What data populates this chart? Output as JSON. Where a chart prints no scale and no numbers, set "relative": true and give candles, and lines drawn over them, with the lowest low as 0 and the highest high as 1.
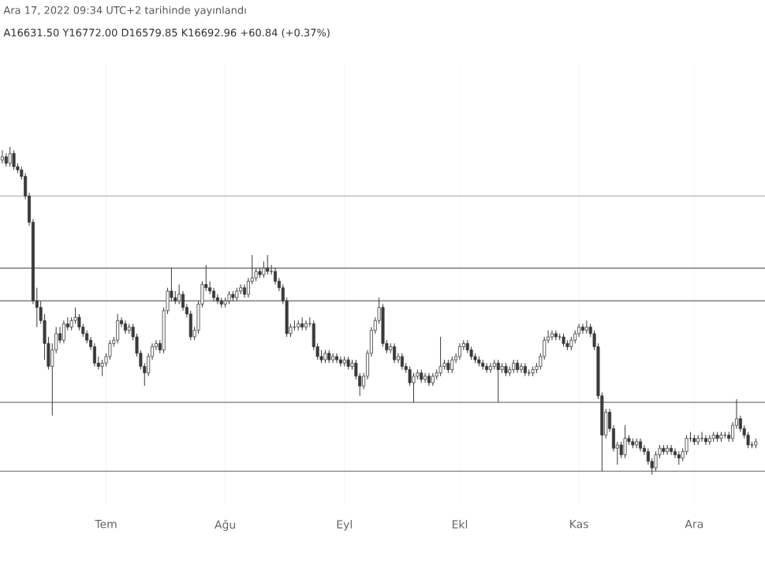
{
  "chart_data": {
    "type": "candlestick",
    "title": "Ara 17, 2022 09:34 UTC+2 tarihinde yayınlandı",
    "subtitle": "A16631.50 Y16772.00 D16579.85 K16692.96 +60.84 (+0.37%)",
    "relative": true,
    "color": "#3a3a3a",
    "grid": "x",
    "categories": [
      null,
      null,
      null,
      null,
      null,
      null,
      null,
      null,
      null,
      null,
      null,
      null,
      null,
      null,
      null,
      null,
      null,
      null,
      null,
      null,
      null,
      null,
      null,
      null,
      null,
      null,
      null,
      "Tem",
      null,
      null,
      null,
      null,
      null,
      null,
      null,
      null,
      null,
      null,
      null,
      null,
      null,
      null,
      null,
      null,
      null,
      null,
      null,
      null,
      null,
      null,
      null,
      null,
      null,
      null,
      null,
      null,
      null,
      null,
      "Ağu",
      null,
      null,
      null,
      null,
      null,
      null,
      null,
      null,
      null,
      null,
      null,
      null,
      null,
      null,
      null,
      null,
      null,
      null,
      null,
      null,
      null,
      null,
      null,
      null,
      null,
      null,
      null,
      null,
      null,
      null,
      "Eyl",
      null,
      null,
      null,
      null,
      null,
      null,
      null,
      null,
      null,
      null,
      null,
      null,
      null,
      null,
      null,
      null,
      null,
      null,
      null,
      null,
      null,
      null,
      null,
      null,
      null,
      null,
      null,
      null,
      null,
      "Ekl",
      null,
      null,
      null,
      null,
      null,
      null,
      null,
      null,
      null,
      null,
      null,
      null,
      null,
      null,
      null,
      null,
      null,
      null,
      null,
      null,
      null,
      null,
      null,
      null,
      null,
      null,
      null,
      null,
      null,
      null,
      "Kas",
      null,
      null,
      null,
      null,
      null,
      null,
      null,
      null,
      null,
      null,
      null,
      null,
      null,
      null,
      null,
      null,
      null,
      null,
      null,
      null,
      null,
      null,
      null,
      null,
      null,
      null,
      null,
      null,
      null,
      "Ara",
      null,
      null,
      null,
      null,
      null,
      null,
      null,
      null,
      null,
      null,
      null,
      null,
      null,
      null,
      null,
      null
    ],
    "ref_lines": [
      {
        "axis": "y",
        "value": 0.85,
        "color": "#bdbdbd"
      },
      {
        "axis": "y",
        "value": 0.63,
        "color": "#8c8c8c"
      },
      {
        "axis": "y",
        "value": 0.53,
        "color": "#8c8c8c"
      },
      {
        "axis": "y",
        "value": 0.22,
        "color": "#8c8c8c"
      },
      {
        "axis": "y",
        "value": 0.01,
        "color": "#8c8c8c"
      }
    ],
    "ohlc": [
      [
        0.96,
        0.99,
        0.95,
        0.97
      ],
      [
        0.97,
        0.98,
        0.94,
        0.95
      ],
      [
        0.95,
        1.0,
        0.94,
        0.98
      ],
      [
        0.98,
        0.99,
        0.93,
        0.94
      ],
      [
        0.94,
        0.95,
        0.92,
        0.93
      ],
      [
        0.93,
        0.94,
        0.9,
        0.91
      ],
      [
        0.91,
        0.92,
        0.84,
        0.85
      ],
      [
        0.85,
        0.86,
        0.76,
        0.77
      ],
      [
        0.77,
        0.78,
        0.52,
        0.53
      ],
      [
        0.53,
        0.57,
        0.45,
        0.51
      ],
      [
        0.51,
        0.53,
        0.46,
        0.47
      ],
      [
        0.47,
        0.49,
        0.35,
        0.4
      ],
      [
        0.4,
        0.42,
        0.32,
        0.33
      ],
      [
        0.33,
        0.4,
        0.18,
        0.38
      ],
      [
        0.38,
        0.45,
        0.37,
        0.43
      ],
      [
        0.43,
        0.45,
        0.4,
        0.41
      ],
      [
        0.41,
        0.47,
        0.4,
        0.46
      ],
      [
        0.46,
        0.48,
        0.44,
        0.45
      ],
      [
        0.45,
        0.48,
        0.44,
        0.47
      ],
      [
        0.47,
        0.51,
        0.46,
        0.48
      ],
      [
        0.48,
        0.49,
        0.44,
        0.45
      ],
      [
        0.45,
        0.46,
        0.42,
        0.43
      ],
      [
        0.43,
        0.44,
        0.4,
        0.41
      ],
      [
        0.41,
        0.42,
        0.38,
        0.39
      ],
      [
        0.39,
        0.4,
        0.33,
        0.34
      ],
      [
        0.34,
        0.36,
        0.32,
        0.33
      ],
      [
        0.33,
        0.35,
        0.3,
        0.34
      ],
      [
        0.34,
        0.37,
        0.33,
        0.36
      ],
      [
        0.36,
        0.41,
        0.35,
        0.4
      ],
      [
        0.4,
        0.42,
        0.39,
        0.41
      ],
      [
        0.41,
        0.49,
        0.4,
        0.47
      ],
      [
        0.47,
        0.48,
        0.45,
        0.46
      ],
      [
        0.46,
        0.47,
        0.43,
        0.44
      ],
      [
        0.44,
        0.46,
        0.43,
        0.45
      ],
      [
        0.45,
        0.46,
        0.41,
        0.42
      ],
      [
        0.42,
        0.43,
        0.36,
        0.37
      ],
      [
        0.37,
        0.38,
        0.32,
        0.33
      ],
      [
        0.33,
        0.34,
        0.27,
        0.31
      ],
      [
        0.31,
        0.37,
        0.3,
        0.36
      ],
      [
        0.36,
        0.4,
        0.35,
        0.39
      ],
      [
        0.39,
        0.41,
        0.38,
        0.4
      ],
      [
        0.4,
        0.41,
        0.37,
        0.38
      ],
      [
        0.38,
        0.51,
        0.37,
        0.5
      ],
      [
        0.5,
        0.57,
        0.49,
        0.56
      ],
      [
        0.56,
        0.63,
        0.53,
        0.54
      ],
      [
        0.54,
        0.56,
        0.52,
        0.53
      ],
      [
        0.53,
        0.58,
        0.52,
        0.55
      ],
      [
        0.55,
        0.56,
        0.5,
        0.51
      ],
      [
        0.51,
        0.52,
        0.48,
        0.49
      ],
      [
        0.49,
        0.5,
        0.41,
        0.42
      ],
      [
        0.42,
        0.45,
        0.41,
        0.44
      ],
      [
        0.44,
        0.53,
        0.43,
        0.52
      ],
      [
        0.52,
        0.59,
        0.51,
        0.58
      ],
      [
        0.58,
        0.64,
        0.56,
        0.57
      ],
      [
        0.57,
        0.59,
        0.55,
        0.56
      ],
      [
        0.56,
        0.57,
        0.53,
        0.54
      ],
      [
        0.54,
        0.55,
        0.52,
        0.53
      ],
      [
        0.53,
        0.54,
        0.51,
        0.52
      ],
      [
        0.52,
        0.54,
        0.51,
        0.53
      ],
      [
        0.53,
        0.56,
        0.52,
        0.55
      ],
      [
        0.55,
        0.56,
        0.53,
        0.54
      ],
      [
        0.54,
        0.57,
        0.53,
        0.56
      ],
      [
        0.56,
        0.58,
        0.55,
        0.57
      ],
      [
        0.57,
        0.58,
        0.54,
        0.55
      ],
      [
        0.55,
        0.6,
        0.54,
        0.59
      ],
      [
        0.59,
        0.67,
        0.58,
        0.6
      ],
      [
        0.6,
        0.63,
        0.59,
        0.62
      ],
      [
        0.62,
        0.63,
        0.6,
        0.61
      ],
      [
        0.61,
        0.65,
        0.6,
        0.63
      ],
      [
        0.63,
        0.67,
        0.61,
        0.62
      ],
      [
        0.62,
        0.64,
        0.61,
        0.62
      ],
      [
        0.62,
        0.63,
        0.58,
        0.59
      ],
      [
        0.59,
        0.6,
        0.56,
        0.57
      ],
      [
        0.57,
        0.58,
        0.52,
        0.53
      ],
      [
        0.53,
        0.54,
        0.42,
        0.43
      ],
      [
        0.43,
        0.46,
        0.42,
        0.45
      ],
      [
        0.45,
        0.47,
        0.44,
        0.45
      ],
      [
        0.45,
        0.47,
        0.44,
        0.46
      ],
      [
        0.46,
        0.48,
        0.44,
        0.45
      ],
      [
        0.45,
        0.47,
        0.44,
        0.46
      ],
      [
        0.46,
        0.48,
        0.45,
        0.46
      ],
      [
        0.46,
        0.47,
        0.38,
        0.39
      ],
      [
        0.39,
        0.4,
        0.35,
        0.36
      ],
      [
        0.36,
        0.38,
        0.34,
        0.35
      ],
      [
        0.35,
        0.38,
        0.34,
        0.37
      ],
      [
        0.37,
        0.38,
        0.34,
        0.35
      ],
      [
        0.35,
        0.37,
        0.34,
        0.36
      ],
      [
        0.36,
        0.37,
        0.34,
        0.35
      ],
      [
        0.35,
        0.36,
        0.33,
        0.34
      ],
      [
        0.34,
        0.36,
        0.33,
        0.35
      ],
      [
        0.35,
        0.36,
        0.32,
        0.33
      ],
      [
        0.33,
        0.35,
        0.32,
        0.34
      ],
      [
        0.34,
        0.35,
        0.29,
        0.3
      ],
      [
        0.3,
        0.31,
        0.24,
        0.27
      ],
      [
        0.27,
        0.31,
        0.26,
        0.3
      ],
      [
        0.3,
        0.38,
        0.29,
        0.37
      ],
      [
        0.37,
        0.45,
        0.36,
        0.44
      ],
      [
        0.44,
        0.48,
        0.43,
        0.47
      ],
      [
        0.47,
        0.54,
        0.46,
        0.51
      ],
      [
        0.51,
        0.52,
        0.39,
        0.4
      ],
      [
        0.4,
        0.41,
        0.37,
        0.38
      ],
      [
        0.38,
        0.4,
        0.37,
        0.39
      ],
      [
        0.39,
        0.4,
        0.34,
        0.35
      ],
      [
        0.35,
        0.37,
        0.34,
        0.36
      ],
      [
        0.36,
        0.37,
        0.32,
        0.33
      ],
      [
        0.33,
        0.34,
        0.31,
        0.32
      ],
      [
        0.32,
        0.33,
        0.27,
        0.28
      ],
      [
        0.28,
        0.31,
        0.22,
        0.3
      ],
      [
        0.3,
        0.32,
        0.29,
        0.31
      ],
      [
        0.31,
        0.32,
        0.28,
        0.29
      ],
      [
        0.29,
        0.31,
        0.28,
        0.3
      ],
      [
        0.3,
        0.31,
        0.27,
        0.28
      ],
      [
        0.28,
        0.31,
        0.27,
        0.3
      ],
      [
        0.3,
        0.32,
        0.29,
        0.31
      ],
      [
        0.31,
        0.42,
        0.3,
        0.33
      ],
      [
        0.33,
        0.35,
        0.32,
        0.34
      ],
      [
        0.34,
        0.35,
        0.31,
        0.32
      ],
      [
        0.32,
        0.36,
        0.31,
        0.35
      ],
      [
        0.35,
        0.37,
        0.34,
        0.36
      ],
      [
        0.36,
        0.4,
        0.35,
        0.39
      ],
      [
        0.39,
        0.41,
        0.38,
        0.4
      ],
      [
        0.4,
        0.41,
        0.37,
        0.38
      ],
      [
        0.38,
        0.39,
        0.35,
        0.36
      ],
      [
        0.36,
        0.37,
        0.34,
        0.35
      ],
      [
        0.35,
        0.36,
        0.33,
        0.34
      ],
      [
        0.34,
        0.35,
        0.32,
        0.33
      ],
      [
        0.33,
        0.34,
        0.31,
        0.32
      ],
      [
        0.32,
        0.34,
        0.31,
        0.33
      ],
      [
        0.33,
        0.35,
        0.32,
        0.34
      ],
      [
        0.34,
        0.35,
        0.22,
        0.32
      ],
      [
        0.32,
        0.34,
        0.31,
        0.33
      ],
      [
        0.33,
        0.34,
        0.3,
        0.31
      ],
      [
        0.31,
        0.33,
        0.3,
        0.32
      ],
      [
        0.32,
        0.35,
        0.31,
        0.34
      ],
      [
        0.34,
        0.35,
        0.31,
        0.32
      ],
      [
        0.32,
        0.34,
        0.31,
        0.33
      ],
      [
        0.33,
        0.34,
        0.3,
        0.31
      ],
      [
        0.31,
        0.32,
        0.3,
        0.31
      ],
      [
        0.31,
        0.33,
        0.3,
        0.32
      ],
      [
        0.32,
        0.34,
        0.31,
        0.33
      ],
      [
        0.33,
        0.37,
        0.32,
        0.36
      ],
      [
        0.36,
        0.42,
        0.35,
        0.41
      ],
      [
        0.41,
        0.44,
        0.4,
        0.42
      ],
      [
        0.42,
        0.44,
        0.41,
        0.43
      ],
      [
        0.43,
        0.44,
        0.41,
        0.42
      ],
      [
        0.42,
        0.43,
        0.41,
        0.42
      ],
      [
        0.42,
        0.43,
        0.39,
        0.4
      ],
      [
        0.4,
        0.41,
        0.38,
        0.39
      ],
      [
        0.39,
        0.42,
        0.38,
        0.41
      ],
      [
        0.41,
        0.44,
        0.4,
        0.43
      ],
      [
        0.43,
        0.46,
        0.42,
        0.45
      ],
      [
        0.45,
        0.46,
        0.43,
        0.44
      ],
      [
        0.44,
        0.47,
        0.43,
        0.45
      ],
      [
        0.45,
        0.46,
        0.42,
        0.43
      ],
      [
        0.43,
        0.44,
        0.38,
        0.39
      ],
      [
        0.39,
        0.4,
        0.23,
        0.24
      ],
      [
        0.24,
        0.25,
        0.01,
        0.12
      ],
      [
        0.12,
        0.2,
        0.11,
        0.19
      ],
      [
        0.19,
        0.2,
        0.13,
        0.14
      ],
      [
        0.14,
        0.15,
        0.07,
        0.08
      ],
      [
        0.08,
        0.1,
        0.03,
        0.09
      ],
      [
        0.09,
        0.1,
        0.05,
        0.06
      ],
      [
        0.06,
        0.15,
        0.05,
        0.11
      ],
      [
        0.11,
        0.12,
        0.09,
        0.1
      ],
      [
        0.1,
        0.11,
        0.08,
        0.09
      ],
      [
        0.09,
        0.11,
        0.08,
        0.1
      ],
      [
        0.1,
        0.11,
        0.07,
        0.08
      ],
      [
        0.08,
        0.09,
        0.06,
        0.07
      ],
      [
        0.07,
        0.08,
        0.03,
        0.04
      ],
      [
        0.04,
        0.05,
        0,
        0.02
      ],
      [
        0.02,
        0.07,
        0.01,
        0.06
      ],
      [
        0.06,
        0.09,
        0.05,
        0.08
      ],
      [
        0.08,
        0.09,
        0.06,
        0.07
      ],
      [
        0.07,
        0.09,
        0.06,
        0.08
      ],
      [
        0.08,
        0.09,
        0.06,
        0.07
      ],
      [
        0.07,
        0.08,
        0.05,
        0.06
      ],
      [
        0.06,
        0.07,
        0.03,
        0.05
      ],
      [
        0.05,
        0.08,
        0.04,
        0.07
      ],
      [
        0.07,
        0.12,
        0.06,
        0.11
      ],
      [
        0.11,
        0.13,
        0.1,
        0.11
      ],
      [
        0.11,
        0.12,
        0.09,
        0.1
      ],
      [
        0.1,
        0.12,
        0.09,
        0.11
      ],
      [
        0.11,
        0.13,
        0.1,
        0.11
      ],
      [
        0.11,
        0.12,
        0.09,
        0.1
      ],
      [
        0.1,
        0.12,
        0.09,
        0.11
      ],
      [
        0.11,
        0.13,
        0.1,
        0.12
      ],
      [
        0.12,
        0.13,
        0.1,
        0.11
      ],
      [
        0.11,
        0.13,
        0.1,
        0.12
      ],
      [
        0.12,
        0.13,
        0.11,
        0.12
      ],
      [
        0.12,
        0.13,
        0.1,
        0.11
      ],
      [
        0.11,
        0.16,
        0.1,
        0.15
      ],
      [
        0.15,
        0.23,
        0.14,
        0.17
      ],
      [
        0.17,
        0.18,
        0.13,
        0.14
      ],
      [
        0.14,
        0.15,
        0.11,
        0.12
      ],
      [
        0.12,
        0.13,
        0.08,
        0.09
      ],
      [
        0.09,
        0.1,
        0.08,
        0.09
      ],
      [
        0.09,
        0.11,
        0.08,
        0.1
      ]
    ]
  }
}
